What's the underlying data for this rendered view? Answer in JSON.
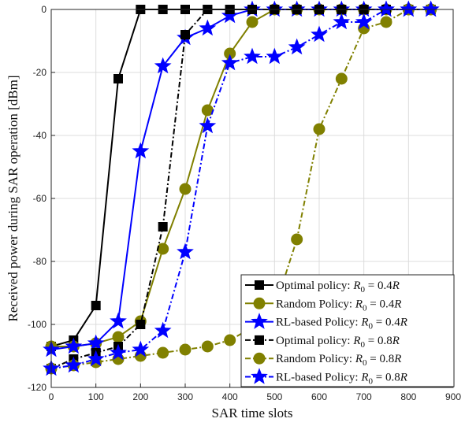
{
  "chart_data": {
    "type": "line",
    "xlabel": "SAR time slots",
    "ylabel": "Received power during SAR operation [dBm]",
    "xlim": [
      0,
      900
    ],
    "ylim": [
      -120,
      0
    ],
    "xticks": [
      0,
      100,
      200,
      300,
      400,
      500,
      600,
      700,
      800,
      900
    ],
    "yticks": [
      -120,
      -100,
      -80,
      -60,
      -40,
      -20,
      0
    ],
    "grid": true,
    "legend_position": "bottom-right",
    "series": [
      {
        "name": "Optimal policy: R0 = 0.4R",
        "legend_parts": [
          "Optimal policy: ",
          "R",
          "0",
          " = 0.4",
          "R"
        ],
        "color": "#000000",
        "marker": "square",
        "dash": "solid",
        "x": [
          0,
          50,
          100,
          150,
          200,
          250,
          300,
          350,
          400,
          450,
          500,
          550,
          600,
          650,
          700,
          750,
          800,
          850
        ],
        "y": [
          -107,
          -105,
          -94,
          -22,
          0,
          0,
          0,
          0,
          0,
          0,
          0,
          0,
          0,
          0,
          0,
          0,
          0,
          0
        ]
      },
      {
        "name": "Random Policy: R0 = 0.4R",
        "legend_parts": [
          "Random Policy: ",
          "R",
          "0",
          " = 0.4",
          "R"
        ],
        "color": "#808000",
        "marker": "circle",
        "dash": "solid",
        "x": [
          0,
          50,
          100,
          150,
          200,
          250,
          300,
          350,
          400,
          450,
          500,
          550,
          600,
          650,
          700,
          750,
          800,
          850
        ],
        "y": [
          -107,
          -107,
          -106,
          -104,
          -99,
          -76,
          -57,
          -32,
          -14,
          -4,
          0,
          0,
          0,
          0,
          0,
          0,
          0,
          0
        ]
      },
      {
        "name": "RL-based Policy: R0 = 0.4R",
        "legend_parts": [
          "RL-based Policy: ",
          "R",
          "0",
          " = 0.4",
          "R"
        ],
        "color": "#0000ff",
        "marker": "star",
        "dash": "solid",
        "x": [
          0,
          50,
          100,
          150,
          200,
          250,
          300,
          350,
          400,
          450,
          500,
          550,
          600,
          650,
          700,
          750,
          800,
          850
        ],
        "y": [
          -108,
          -107,
          -106,
          -99,
          -45,
          -18,
          -9,
          -6,
          -2,
          0,
          0,
          0,
          0,
          0,
          0,
          0,
          0,
          0
        ]
      },
      {
        "name": "Optimal policy: R0 = 0.8R",
        "legend_parts": [
          "Optimal policy: ",
          "R",
          "0",
          " = 0.8",
          "R"
        ],
        "color": "#000000",
        "marker": "square",
        "dash": "dashdot",
        "x": [
          0,
          50,
          100,
          150,
          200,
          250,
          300,
          350,
          400,
          450,
          500,
          550,
          600,
          650,
          700,
          750,
          800,
          850
        ],
        "y": [
          -114,
          -111,
          -109,
          -107,
          -100,
          -69,
          -8,
          0,
          0,
          0,
          0,
          0,
          0,
          0,
          0,
          0,
          0,
          0
        ]
      },
      {
        "name": "Random Policy: R0 = 0.8R",
        "legend_parts": [
          "Random Policy: ",
          "R",
          "0",
          " = 0.8",
          "R"
        ],
        "color": "#808000",
        "marker": "circle",
        "dash": "dashdot",
        "x": [
          0,
          50,
          100,
          150,
          200,
          250,
          300,
          350,
          400,
          450,
          500,
          550,
          600,
          650,
          700,
          750,
          800,
          850
        ],
        "y": [
          -114,
          -113,
          -112,
          -111,
          -110,
          -109,
          -108,
          -107,
          -105,
          -101,
          -95,
          -73,
          -38,
          -22,
          -6,
          -4,
          0,
          0
        ]
      },
      {
        "name": "RL-based Policy: R0 = 0.8R",
        "legend_parts": [
          "RL-based Policy: ",
          "R",
          "0",
          " = 0.8",
          "R"
        ],
        "color": "#0000ff",
        "marker": "star",
        "dash": "dashdot",
        "x": [
          0,
          50,
          100,
          150,
          200,
          250,
          300,
          350,
          400,
          450,
          500,
          550,
          600,
          650,
          700,
          750,
          800,
          850
        ],
        "y": [
          -114,
          -113,
          -111,
          -109,
          -108,
          -102,
          -77,
          -37,
          -17,
          -15,
          -15,
          -12,
          -8,
          -4,
          -4,
          0,
          0,
          0
        ]
      }
    ]
  }
}
